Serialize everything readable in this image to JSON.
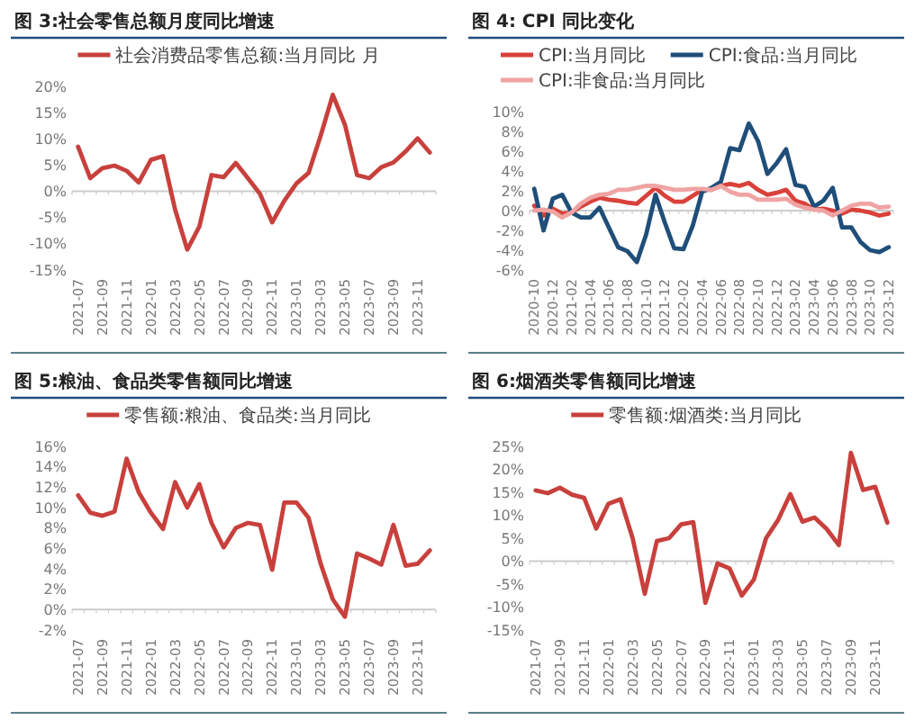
{
  "chart_data": [
    {
      "type": "line",
      "title": "图 3:社会零售总额月度同比增速",
      "legend": "top",
      "categories": [
        "2021-07",
        null,
        "2021-09",
        null,
        "2021-11",
        null,
        "2022-01",
        null,
        "2022-03",
        null,
        "2022-05",
        null,
        "2022-07",
        null,
        "2022-09",
        null,
        "2022-11",
        null,
        "2023-01",
        null,
        "2023-03",
        null,
        "2023-05",
        null,
        "2023-07",
        null,
        "2023-09",
        null,
        "2023-11",
        null
      ],
      "series": [
        {
          "name": "社会消费品零售总额:当月同比 月",
          "color": "#c8403c",
          "values": [
            8.5,
            2.5,
            4.4,
            4.9,
            3.9,
            1.7,
            6.0,
            6.7,
            -3.5,
            -11.1,
            -6.7,
            3.1,
            2.7,
            5.4,
            2.5,
            -0.5,
            -5.9,
            -1.8,
            1.5,
            3.5,
            10.6,
            18.4,
            12.7,
            3.1,
            2.5,
            4.6,
            5.5,
            7.6,
            10.1,
            7.4
          ]
        }
      ],
      "ylim": [
        -15,
        20
      ],
      "yticks": [
        {
          "value": -15,
          "label": "-15%"
        },
        {
          "value": -10,
          "label": "-10%"
        },
        {
          "value": -5,
          "label": "-5%"
        },
        {
          "value": 0,
          "label": "0%"
        },
        {
          "value": 5,
          "label": "5%"
        },
        {
          "value": 10,
          "label": "10%"
        },
        {
          "value": 15,
          "label": "15%"
        },
        {
          "value": 20,
          "label": "20%"
        }
      ]
    },
    {
      "type": "line",
      "title": "图 4: CPI 同比变化",
      "legend": "top",
      "categories": [
        "2020-10",
        null,
        "2020-12",
        null,
        "2021-02",
        null,
        "2021-04",
        null,
        "2021-06",
        null,
        "2021-08",
        null,
        "2021-10",
        null,
        "2021-12",
        null,
        "2022-02",
        null,
        "2022-04",
        null,
        "2022-06",
        null,
        "2022-08",
        null,
        "2022-10",
        null,
        "2022-12",
        null,
        "2023-02",
        null,
        "2023-04",
        null,
        "2023-06",
        null,
        "2023-08",
        null,
        "2023-10",
        null,
        "2023-12"
      ],
      "series": [
        {
          "name": "CPI:当月同比",
          "color": "#d9413b",
          "values": [
            0.5,
            -0.5,
            0.2,
            -0.3,
            -0.2,
            0.4,
            0.9,
            1.3,
            1.1,
            1.0,
            0.8,
            0.7,
            1.5,
            2.3,
            1.5,
            0.9,
            0.9,
            1.5,
            2.1,
            2.1,
            2.5,
            2.7,
            2.5,
            2.8,
            2.1,
            1.6,
            1.8,
            2.1,
            1.0,
            0.7,
            0.1,
            0.2,
            0.0,
            -0.3,
            0.1,
            0.0,
            -0.2,
            -0.5,
            -0.3
          ]
        },
        {
          "name": "CPI:食品:当月同比",
          "color": "#1f4e79",
          "values": [
            2.2,
            -2.0,
            1.2,
            1.6,
            -0.2,
            -0.7,
            -0.7,
            0.3,
            -1.7,
            -3.7,
            -4.1,
            -5.2,
            -2.4,
            1.6,
            -1.2,
            -3.8,
            -3.9,
            -1.5,
            1.9,
            2.3,
            2.9,
            6.3,
            6.1,
            8.8,
            7.0,
            3.7,
            4.8,
            6.2,
            2.6,
            2.4,
            0.4,
            1.0,
            2.3,
            -1.7,
            -1.7,
            -3.2,
            -4.0,
            -4.2,
            -3.7
          ]
        },
        {
          "name": "CPI:非食品:当月同比",
          "color": "#f0a3a3",
          "values": [
            0.0,
            0.1,
            -0.1,
            -0.7,
            -0.2,
            0.7,
            1.3,
            1.6,
            1.7,
            2.1,
            2.1,
            2.3,
            2.5,
            2.5,
            2.3,
            2.1,
            2.1,
            2.2,
            2.2,
            2.1,
            2.5,
            1.9,
            1.6,
            1.6,
            1.1,
            1.1,
            1.1,
            1.2,
            0.6,
            0.3,
            0.1,
            0.0,
            -0.5,
            0.0,
            0.5,
            0.7,
            0.7,
            0.3,
            0.4
          ]
        }
      ],
      "ylim": [
        -6,
        10
      ],
      "yticks": [
        {
          "value": -6,
          "label": "-6%"
        },
        {
          "value": -4,
          "label": "-4%"
        },
        {
          "value": -2,
          "label": "-2%"
        },
        {
          "value": 0,
          "label": "0%"
        },
        {
          "value": 2,
          "label": "2%"
        },
        {
          "value": 4,
          "label": "4%"
        },
        {
          "value": 6,
          "label": "6%"
        },
        {
          "value": 8,
          "label": "8%"
        },
        {
          "value": 10,
          "label": "10%"
        }
      ]
    },
    {
      "type": "line",
      "title": "图 5:粮油、食品类零售额同比增速",
      "legend": "top",
      "categories": [
        "2021-07",
        null,
        "2021-09",
        null,
        "2021-11",
        null,
        "2022-01",
        null,
        "2022-03",
        null,
        "2022-05",
        null,
        "2022-07",
        null,
        "2022-09",
        null,
        "2022-11",
        null,
        "2023-01",
        null,
        "2023-03",
        null,
        "2023-05",
        null,
        "2023-07",
        null,
        "2023-09",
        null,
        "2023-11",
        null
      ],
      "series": [
        {
          "name": "零售额:粮油、食品类:当月同比",
          "color": "#c8403c",
          "values": [
            11.2,
            9.5,
            9.2,
            9.6,
            14.8,
            11.5,
            9.5,
            7.9,
            12.5,
            10.0,
            12.3,
            8.5,
            6.1,
            8.0,
            8.5,
            8.3,
            3.9,
            10.5,
            10.5,
            9.0,
            4.5,
            1.0,
            -0.7,
            5.5,
            5.0,
            4.4,
            8.3,
            4.3,
            4.5,
            5.8
          ]
        }
      ],
      "ylim": [
        -2,
        16
      ],
      "yticks": [
        {
          "value": -2,
          "label": "-2%"
        },
        {
          "value": 0,
          "label": "0%"
        },
        {
          "value": 2,
          "label": "2%"
        },
        {
          "value": 4,
          "label": "4%"
        },
        {
          "value": 6,
          "label": "6%"
        },
        {
          "value": 8,
          "label": "8%"
        },
        {
          "value": 10,
          "label": "10%"
        },
        {
          "value": 12,
          "label": "12%"
        },
        {
          "value": 14,
          "label": "14%"
        },
        {
          "value": 16,
          "label": "16%"
        }
      ]
    },
    {
      "type": "line",
      "title": "图 6:烟酒类零售额同比增速",
      "legend": "top",
      "categories": [
        "2021-07",
        null,
        "2021-09",
        null,
        "2021-11",
        null,
        "2022-01",
        null,
        "2022-03",
        null,
        "2022-05",
        null,
        "2022-07",
        null,
        "2022-09",
        null,
        "2022-11",
        null,
        "2023-01",
        null,
        "2023-03",
        null,
        "2023-05",
        null,
        "2023-07",
        null,
        "2023-09",
        null,
        "2023-11",
        null
      ],
      "series": [
        {
          "name": "零售额:烟酒类:当月同比",
          "color": "#c8403c",
          "values": [
            15.4,
            14.8,
            16.0,
            14.5,
            13.8,
            7.1,
            12.5,
            13.5,
            5.0,
            -7.1,
            4.4,
            5.0,
            8.0,
            8.5,
            -9.1,
            -0.5,
            -1.6,
            -7.5,
            -4.0,
            5.0,
            9.0,
            14.6,
            8.6,
            9.5,
            7.0,
            3.5,
            23.6,
            15.5,
            16.2,
            8.4
          ]
        }
      ],
      "ylim": [
        -15,
        25
      ],
      "yticks": [
        {
          "value": -15,
          "label": "-15%"
        },
        {
          "value": -10,
          "label": "-10%"
        },
        {
          "value": -5,
          "label": "-5%"
        },
        {
          "value": 0,
          "label": "0%"
        },
        {
          "value": 5,
          "label": "5%"
        },
        {
          "value": 10,
          "label": "10%"
        },
        {
          "value": 15,
          "label": "15%"
        },
        {
          "value": 20,
          "label": "20%"
        },
        {
          "value": 25,
          "label": "25%"
        }
      ]
    }
  ]
}
